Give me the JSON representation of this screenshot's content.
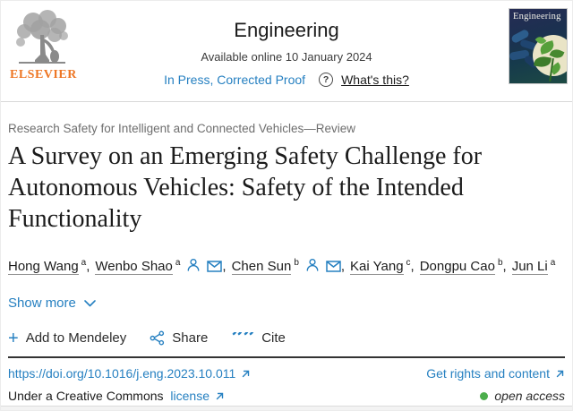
{
  "header": {
    "publisher": "ELSEVIER",
    "journal": "Engineering",
    "availability": "Available online 10 January 2024",
    "status_link": "In Press, Corrected Proof",
    "whats_this": "What's this?",
    "help_glyph": "?",
    "cover_title": "Engineering"
  },
  "article": {
    "section_label": "Research Safety for Intelligent and Connected Vehicles—Review",
    "title": "A Survey on an Emerging Safety Challenge for Autonomous Vehicles: Safety of the Intended Functionality",
    "authors": [
      {
        "name": "Hong Wang",
        "sup": "a",
        "icons": []
      },
      {
        "name": "Wenbo Shao",
        "sup": "a",
        "icons": [
          "person-icon",
          "envelope-icon"
        ]
      },
      {
        "name": "Chen Sun",
        "sup": "b",
        "icons": [
          "person-icon",
          "envelope-icon"
        ]
      },
      {
        "name": "Kai Yang",
        "sup": "c",
        "icons": []
      },
      {
        "name": "Dongpu Cao",
        "sup": "b",
        "icons": []
      },
      {
        "name": "Jun Li",
        "sup": "a",
        "icons": []
      }
    ],
    "show_more": "Show more"
  },
  "actions": {
    "mendeley": "Add to Mendeley",
    "plus_glyph": "+",
    "share": "Share",
    "cite": "Cite",
    "cite_glyph": "””"
  },
  "footer": {
    "doi": "https://doi.org/10.1016/j.eng.2023.10.011",
    "rights": "Get rights and content",
    "cc_prefix": "Under a Creative Commons",
    "cc_link": "license",
    "open_access": "open access"
  },
  "colors": {
    "link_blue": "#2680c1",
    "elsevier_orange": "#ee7624",
    "open_access_green": "#4cae4c"
  }
}
